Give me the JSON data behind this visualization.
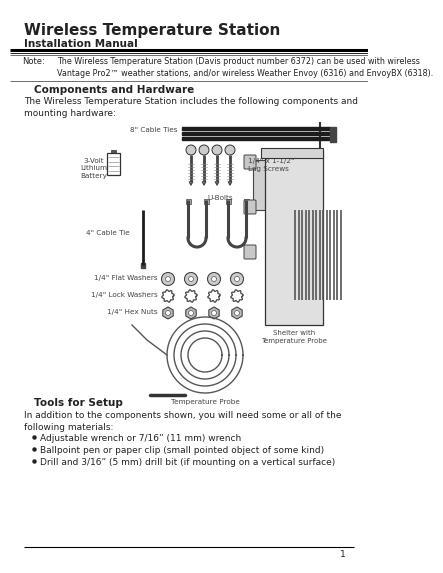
{
  "title": "Wireless Temperature Station",
  "subtitle": "Installation Manual",
  "bg_color": "#ffffff",
  "note_label": "Note:",
  "note_text": "The Wireless Temperature Station (Davis product number 6372) can be used with wireless\nVantage Pro2™ weather stations, and/or wireless Weather Envoy (6316) and EnvoyBX (6318).",
  "section1_title": "Components and Hardware",
  "section1_body": "The Wireless Temperature Station includes the following components and\nmounting hardware:",
  "section2_title": "Tools for Setup",
  "section2_body": "In addition to the components shown, you will need some or all of the\nfollowing materials:",
  "bullet_items": [
    "Adjustable wrench or 7/16” (11 mm) wrench",
    "Ballpoint pen or paper clip (small pointed object of some kind)",
    "Drill and 3/16” (5 mm) drill bit (if mounting on a vertical surface)"
  ],
  "page_number": "1",
  "text_color": "#222222",
  "label_color": "#444444",
  "dim_color": "#555555"
}
